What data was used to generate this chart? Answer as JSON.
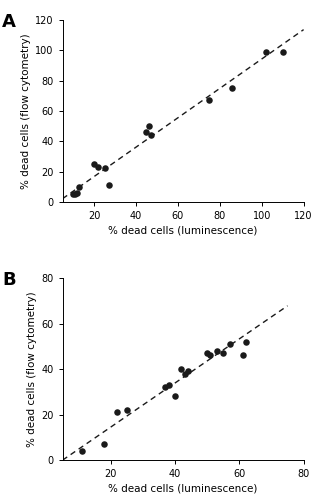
{
  "panel_A": {
    "label": "A",
    "x": [
      10,
      11,
      12,
      13,
      20,
      22,
      25,
      27,
      45,
      46,
      47,
      75,
      86,
      102,
      110
    ],
    "y": [
      5,
      5,
      6,
      10,
      25,
      23,
      22,
      11,
      46,
      50,
      44,
      67,
      75,
      99,
      99
    ],
    "reg_slope": 0.97,
    "reg_intercept": -2.75,
    "xlim": [
      5,
      120
    ],
    "ylim": [
      0,
      120
    ],
    "xticks": [
      20,
      40,
      60,
      80,
      100,
      120
    ],
    "yticks": [
      0,
      20,
      40,
      60,
      80,
      100,
      120
    ],
    "xlabel": "% dead cells (luminescence)",
    "ylabel": "% dead cells (flow cytometry)"
  },
  "panel_B": {
    "label": "B",
    "x": [
      11,
      18,
      22,
      25,
      37,
      38,
      40,
      42,
      43,
      44,
      50,
      51,
      53,
      55,
      57,
      61,
      62
    ],
    "y": [
      4,
      7,
      21,
      22,
      32,
      33,
      28,
      40,
      38,
      39,
      47,
      46,
      48,
      47,
      51,
      46,
      52
    ],
    "reg_slope": 0.97,
    "reg_intercept": -4.9,
    "xlim": [
      5,
      75
    ],
    "ylim": [
      0,
      80
    ],
    "xticks": [
      20,
      40,
      60,
      80
    ],
    "yticks": [
      0,
      20,
      40,
      60,
      80
    ],
    "xlabel": "% dead cells (luminescence)",
    "ylabel": "% dead cells (flow cytometry)"
  },
  "dot_color": "#1a1a1a",
  "dot_size": 22,
  "line_color": "#1a1a1a",
  "bg_color": "#ffffff",
  "label_fontsize": 13,
  "tick_fontsize": 7,
  "axis_label_fontsize": 7.5
}
